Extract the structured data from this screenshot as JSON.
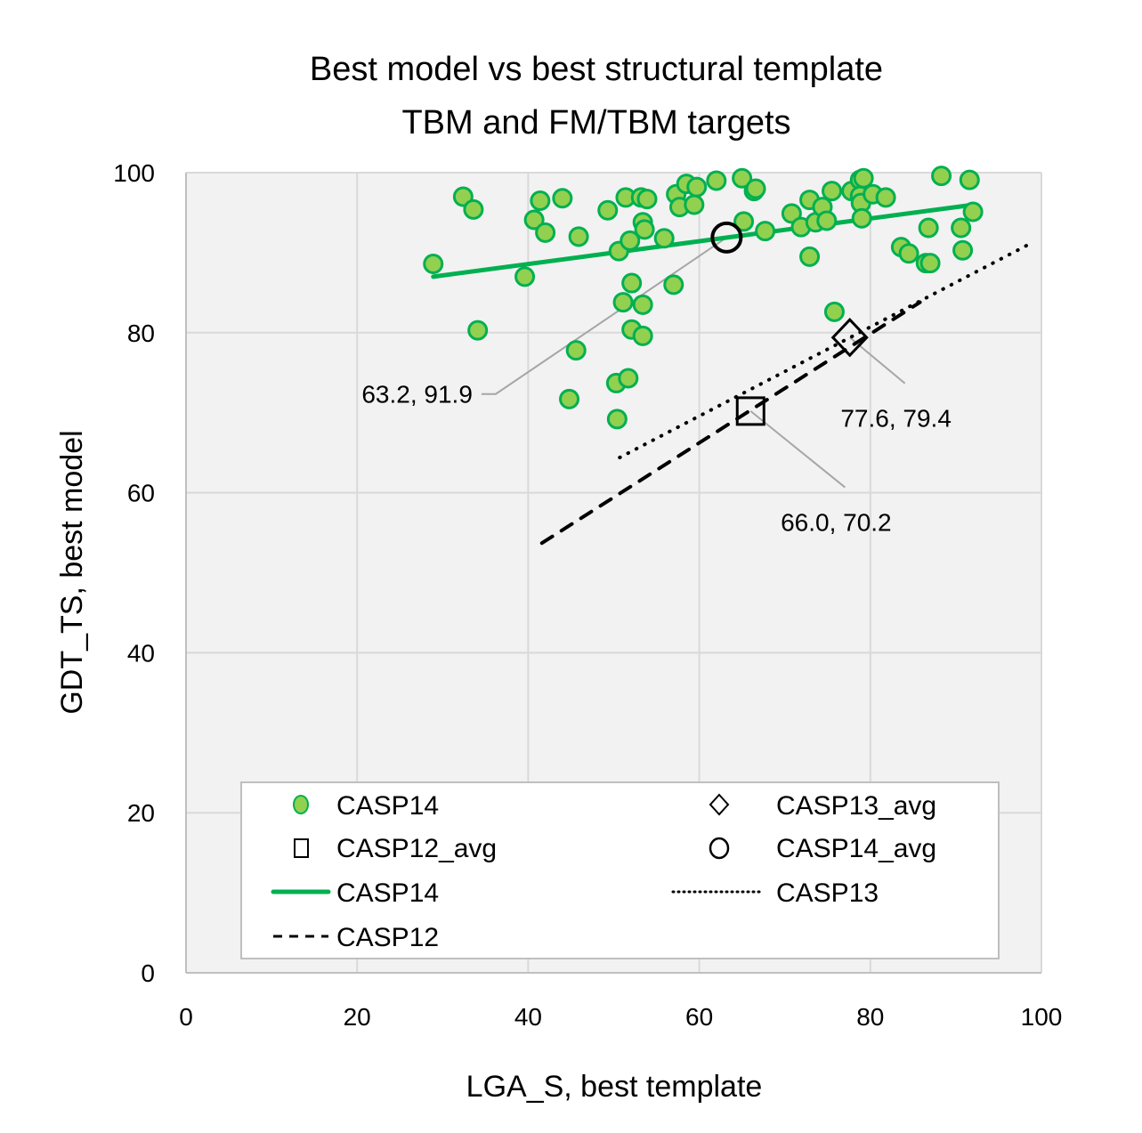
{
  "chart_data": {
    "type": "scatter",
    "title": [
      "Best model vs best structural template",
      "TBM and FM/TBM targets"
    ],
    "xlabel": "LGA_S, best template",
    "ylabel": "GDT_TS, best model",
    "xlim": [
      0,
      100
    ],
    "ylim": [
      0,
      100
    ],
    "xticks": [
      0,
      20,
      40,
      60,
      80,
      100
    ],
    "yticks": [
      0,
      20,
      40,
      60,
      80,
      100
    ],
    "grid": true,
    "legend_position": "bottom-inside",
    "colors": {
      "casp14_fill": "#92d050",
      "casp14_edge": "#00b050",
      "casp14_line": "#00b050",
      "black": "#000000",
      "leader": "#a6a6a6",
      "plot_bg": "#f2f2f2",
      "grid": "#d9d9d9"
    },
    "series": [
      {
        "name": "CASP14",
        "kind": "points",
        "points": [
          [
            28.9,
            88.6
          ],
          [
            32.4,
            97.0
          ],
          [
            33.6,
            95.4
          ],
          [
            34.1,
            80.3
          ],
          [
            39.6,
            87.0
          ],
          [
            40.7,
            94.1
          ],
          [
            41.4,
            96.5
          ],
          [
            42.0,
            92.5
          ],
          [
            44.0,
            96.8
          ],
          [
            44.8,
            71.7
          ],
          [
            45.6,
            77.8
          ],
          [
            45.9,
            92.0
          ],
          [
            49.3,
            95.3
          ],
          [
            50.3,
            73.7
          ],
          [
            50.4,
            69.2
          ],
          [
            50.6,
            90.2
          ],
          [
            51.1,
            83.8
          ],
          [
            51.4,
            96.9
          ],
          [
            51.7,
            74.3
          ],
          [
            51.9,
            91.5
          ],
          [
            52.1,
            86.2
          ],
          [
            52.1,
            80.4
          ],
          [
            53.2,
            96.9
          ],
          [
            53.4,
            93.8
          ],
          [
            53.4,
            83.5
          ],
          [
            53.4,
            79.6
          ],
          [
            53.6,
            92.9
          ],
          [
            53.9,
            96.7
          ],
          [
            55.9,
            91.8
          ],
          [
            57.0,
            86.0
          ],
          [
            57.3,
            97.3
          ],
          [
            57.7,
            95.7
          ],
          [
            58.5,
            98.6
          ],
          [
            59.4,
            96.0
          ],
          [
            59.7,
            98.2
          ],
          [
            62.0,
            99.0
          ],
          [
            65.0,
            99.3
          ],
          [
            65.2,
            93.9
          ],
          [
            66.4,
            97.7
          ],
          [
            66.6,
            98.0
          ],
          [
            67.7,
            92.7
          ],
          [
            70.8,
            94.9
          ],
          [
            71.9,
            93.2
          ],
          [
            72.9,
            96.6
          ],
          [
            72.9,
            89.5
          ],
          [
            73.6,
            93.8
          ],
          [
            74.4,
            95.7
          ],
          [
            74.9,
            94.0
          ],
          [
            75.5,
            97.7
          ],
          [
            75.8,
            82.6
          ],
          [
            77.8,
            97.7
          ],
          [
            78.8,
            99.1
          ],
          [
            78.8,
            97.1
          ],
          [
            78.9,
            96.2
          ],
          [
            79.0,
            94.3
          ],
          [
            79.2,
            99.3
          ],
          [
            80.3,
            97.3
          ],
          [
            81.8,
            96.9
          ],
          [
            83.6,
            90.7
          ],
          [
            84.5,
            89.9
          ],
          [
            86.5,
            88.7
          ],
          [
            86.8,
            93.1
          ],
          [
            87.0,
            88.7
          ],
          [
            88.3,
            99.6
          ],
          [
            90.6,
            93.1
          ],
          [
            90.8,
            90.3
          ],
          [
            91.6,
            99.1
          ],
          [
            92.0,
            95.1
          ]
        ]
      },
      {
        "name": "CASP12_avg",
        "kind": "marker-square",
        "points": [
          [
            66.0,
            70.2
          ]
        ]
      },
      {
        "name": "CASP13_avg",
        "kind": "marker-diamond",
        "points": [
          [
            77.6,
            79.4
          ]
        ]
      },
      {
        "name": "CASP14_avg",
        "kind": "marker-circle",
        "points": [
          [
            63.2,
            91.9
          ]
        ]
      },
      {
        "name": "CASP14",
        "kind": "trendline-solid",
        "points": [
          [
            28.9,
            87.0
          ],
          [
            92.1,
            96.0
          ]
        ]
      },
      {
        "name": "CASP13",
        "kind": "trendline-dotted",
        "points": [
          [
            50.7,
            64.4
          ],
          [
            99.0,
            91.3
          ]
        ]
      },
      {
        "name": "CASP12",
        "kind": "trendline-dashed",
        "points": [
          [
            41.6,
            53.7
          ],
          [
            85.8,
            83.8
          ]
        ]
      }
    ],
    "annotations": [
      {
        "text": "63.2, 91.9",
        "target": [
          63.2,
          91.9
        ],
        "label_at": [
          33.5,
          72.0
        ],
        "anchor": "end"
      },
      {
        "text": "77.6, 79.4",
        "target": [
          77.6,
          79.4
        ],
        "label_at": [
          83.0,
          69.0
        ],
        "anchor": "middle"
      },
      {
        "text": "66.0, 70.2",
        "target": [
          66.0,
          70.2
        ],
        "label_at": [
          76.0,
          56.0
        ],
        "anchor": "middle"
      }
    ],
    "legend": [
      {
        "label": "CASP14",
        "symbol": "green-circle"
      },
      {
        "label": "CASP13_avg",
        "symbol": "diamond"
      },
      {
        "label": "CASP12_avg",
        "symbol": "square"
      },
      {
        "label": "CASP14_avg",
        "symbol": "circle"
      },
      {
        "label": "CASP14",
        "symbol": "green-line"
      },
      {
        "label": "CASP13",
        "symbol": "dotted-line"
      },
      {
        "label": "CASP12",
        "symbol": "dashed-line"
      }
    ]
  }
}
